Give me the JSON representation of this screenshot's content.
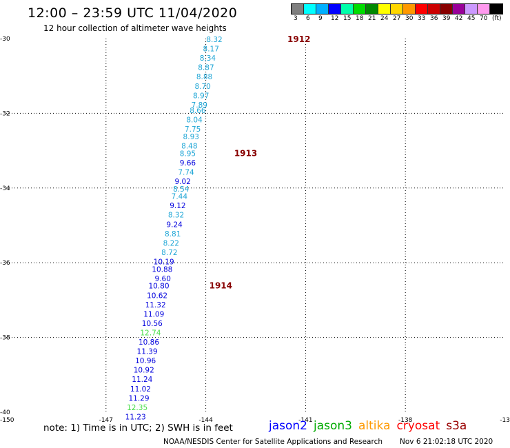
{
  "header": {
    "title": "12:00 – 23:59 UTC 11/04/2020",
    "subtitle": "12 hour collection of altimeter wave heights"
  },
  "colorbar": {
    "colors": [
      "#7f7f7f",
      "#00ffff",
      "#00b0ff",
      "#0000ff",
      "#00ffaa",
      "#00dd00",
      "#008800",
      "#ffff00",
      "#ffd700",
      "#ff9900",
      "#ff0000",
      "#cc0000",
      "#880000",
      "#990099",
      "#cc99ff",
      "#ff99ee",
      "#000000"
    ],
    "labels": [
      "3",
      "6",
      "9",
      "12",
      "15",
      "18",
      "21",
      "24",
      "27",
      "30",
      "33",
      "36",
      "39",
      "42",
      "45",
      "70",
      "(ft)"
    ]
  },
  "axes": {
    "x_ticks": [
      "-150",
      "-147",
      "-144",
      "-141",
      "-138",
      "-13"
    ],
    "y_ticks": [
      "-30",
      "-32",
      "-34",
      "-36",
      "-38",
      "-40"
    ]
  },
  "chart_data": {
    "type": "scatter",
    "xlim": [
      -150,
      -135
    ],
    "ylim": [
      -40,
      -30
    ],
    "grid": true,
    "points": [
      {
        "lon": -143.5,
        "lat": -30.0,
        "label": "8.32",
        "sat": "altika"
      },
      {
        "lon": -143.6,
        "lat": -30.25,
        "label": "8.17",
        "sat": "altika"
      },
      {
        "lon": -143.7,
        "lat": -30.5,
        "label": "8.34",
        "sat": "altika"
      },
      {
        "lon": -143.75,
        "lat": -30.75,
        "label": "8.87",
        "sat": "altika"
      },
      {
        "lon": -143.8,
        "lat": -31.0,
        "label": "8.88",
        "sat": "altika"
      },
      {
        "lon": -143.85,
        "lat": -31.25,
        "label": "8.70",
        "sat": "altika"
      },
      {
        "lon": -143.9,
        "lat": -31.5,
        "label": "8.97",
        "sat": "altika"
      },
      {
        "lon": -143.95,
        "lat": -31.75,
        "label": "7.89",
        "sat": "altika"
      },
      {
        "lon": -144.0,
        "lat": -31.9,
        "label": "8.66",
        "sat": "altika"
      },
      {
        "lon": -144.1,
        "lat": -32.15,
        "label": "8.04",
        "sat": "altika"
      },
      {
        "lon": -144.15,
        "lat": -32.4,
        "label": "7.75",
        "sat": "altika"
      },
      {
        "lon": -144.2,
        "lat": -32.6,
        "label": "8.93",
        "sat": "altika"
      },
      {
        "lon": -144.25,
        "lat": -32.85,
        "label": "8.48",
        "sat": "altika"
      },
      {
        "lon": -144.3,
        "lat": -33.05,
        "label": "8.95",
        "sat": "altika"
      },
      {
        "lon": -144.3,
        "lat": -33.3,
        "label": "9.66",
        "sat": "jason2"
      },
      {
        "lon": -144.35,
        "lat": -33.55,
        "label": "7.74",
        "sat": "altika"
      },
      {
        "lon": -144.45,
        "lat": -33.8,
        "label": "9.02",
        "sat": "jason2"
      },
      {
        "lon": -144.5,
        "lat": -34.0,
        "label": "8.54",
        "sat": "altika"
      },
      {
        "lon": -144.55,
        "lat": -34.2,
        "label": "7.44",
        "sat": "altika"
      },
      {
        "lon": -144.6,
        "lat": -34.45,
        "label": "9.12",
        "sat": "jason2"
      },
      {
        "lon": -144.65,
        "lat": -34.7,
        "label": "8.32",
        "sat": "altika"
      },
      {
        "lon": -144.7,
        "lat": -34.95,
        "label": "9.24",
        "sat": "jason2"
      },
      {
        "lon": -144.75,
        "lat": -35.2,
        "label": "8.81",
        "sat": "altika"
      },
      {
        "lon": -144.8,
        "lat": -35.45,
        "label": "8.22",
        "sat": "altika"
      },
      {
        "lon": -144.85,
        "lat": -35.7,
        "label": "8.72",
        "sat": "altika"
      },
      {
        "lon": -144.95,
        "lat": -35.95,
        "label": "10.19",
        "sat": "jason2"
      },
      {
        "lon": -145.0,
        "lat": -36.15,
        "label": "10.88",
        "sat": "jason2"
      },
      {
        "lon": -145.05,
        "lat": -36.4,
        "label": "9.60",
        "sat": "jason2"
      },
      {
        "lon": -145.1,
        "lat": -36.6,
        "label": "10.80",
        "sat": "jason2"
      },
      {
        "lon": -145.15,
        "lat": -36.85,
        "label": "10.62",
        "sat": "jason2"
      },
      {
        "lon": -145.2,
        "lat": -37.1,
        "label": "11.32",
        "sat": "jason2"
      },
      {
        "lon": -145.25,
        "lat": -37.35,
        "label": "11.09",
        "sat": "jason2"
      },
      {
        "lon": -145.3,
        "lat": -37.6,
        "label": "10.56",
        "sat": "jason2"
      },
      {
        "lon": -145.35,
        "lat": -37.85,
        "label": "12.74",
        "sat": "jason3"
      },
      {
        "lon": -145.4,
        "lat": -38.1,
        "label": "10.86",
        "sat": "jason2"
      },
      {
        "lon": -145.45,
        "lat": -38.35,
        "label": "11.39",
        "sat": "jason2"
      },
      {
        "lon": -145.5,
        "lat": -38.6,
        "label": "10.96",
        "sat": "jason2"
      },
      {
        "lon": -145.55,
        "lat": -38.85,
        "label": "10.92",
        "sat": "jason2"
      },
      {
        "lon": -145.6,
        "lat": -39.1,
        "label": "11.24",
        "sat": "jason2"
      },
      {
        "lon": -145.65,
        "lat": -39.35,
        "label": "11.02",
        "sat": "jason2"
      },
      {
        "lon": -145.7,
        "lat": -39.6,
        "label": "11.29",
        "sat": "jason2"
      },
      {
        "lon": -145.75,
        "lat": -39.85,
        "label": "12.35",
        "sat": "jason3"
      },
      {
        "lon": -145.8,
        "lat": -40.1,
        "label": "11.23",
        "sat": "jason2"
      }
    ],
    "hour_marks": [
      {
        "lon": -141.2,
        "lat": -30.0,
        "label": "1912"
      },
      {
        "lon": -142.8,
        "lat": -33.05,
        "label": "1913"
      },
      {
        "lon": -143.55,
        "lat": -36.6,
        "label": "1914"
      }
    ]
  },
  "sat_colors": {
    "jason2": "#0000dd",
    "jason3": "#44dd44",
    "altika": "#1fa6d6",
    "cryosat": "#ff0000",
    "s3a": "#aa0000",
    "hour": "#880000"
  },
  "footer": {
    "note": "note:  1) Time is in UTC;  2) SWH is in feet",
    "satellites": [
      {
        "name": "jason2",
        "color": "#0000ff"
      },
      {
        "name": "jason3",
        "color": "#00aa00"
      },
      {
        "name": "altika",
        "color": "#ff9900"
      },
      {
        "name": "cryosat",
        "color": "#ff0000"
      },
      {
        "name": "s3a",
        "color": "#990000"
      }
    ],
    "credit": "NOAA/NESDIS Center for Satellite Applications and Research",
    "timestamp": "Nov  6 21:02:18 UTC 2020"
  }
}
